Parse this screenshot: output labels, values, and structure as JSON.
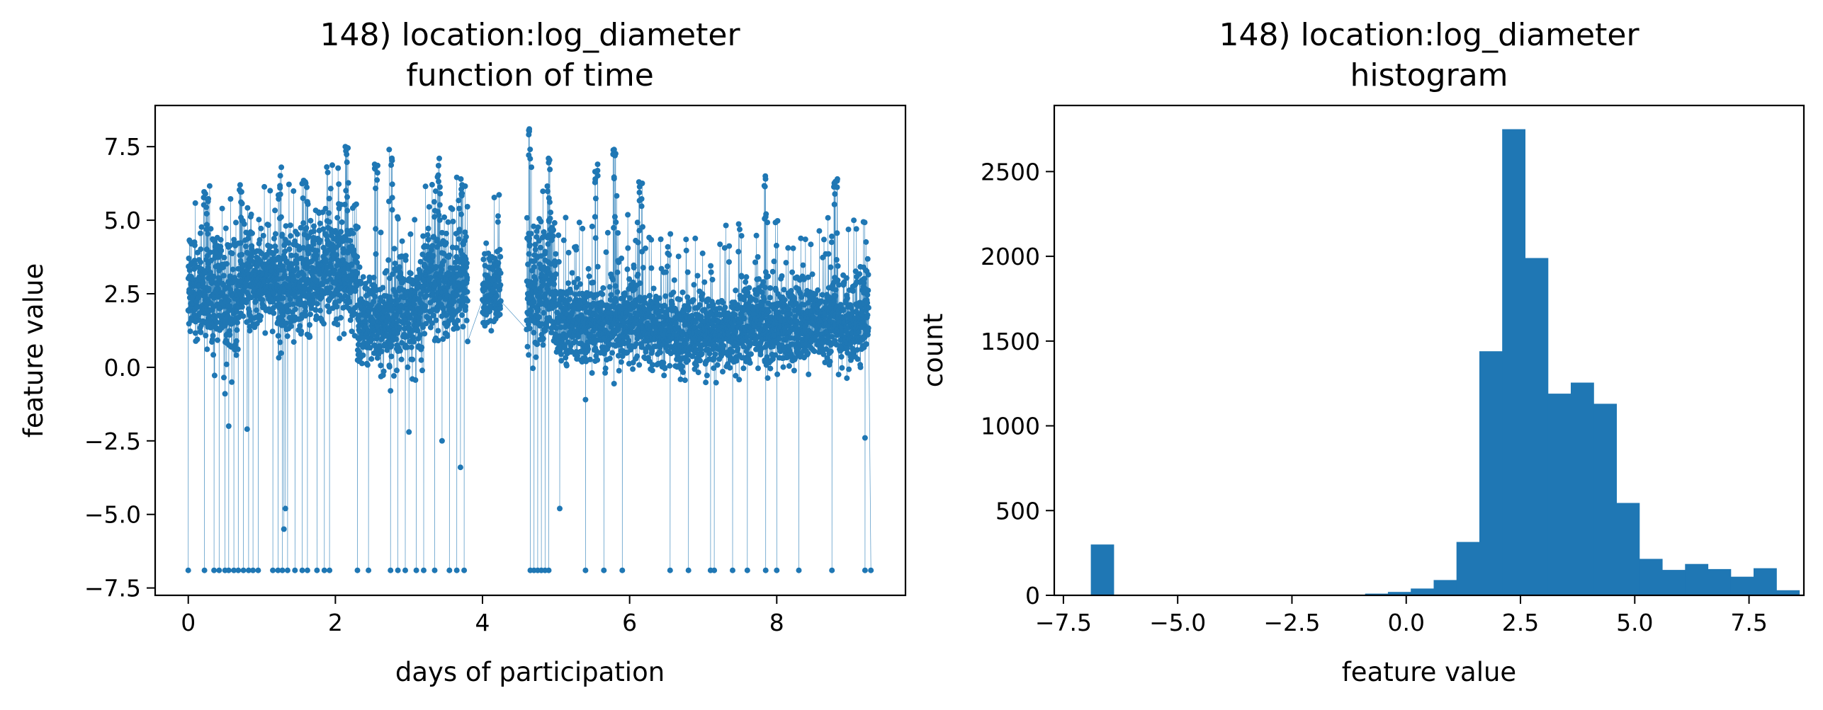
{
  "chart_data": [
    {
      "type": "line",
      "title_line1": "148) location:log_diameter",
      "title_line2": "function of time",
      "xlabel": "days of participation",
      "ylabel": "feature value",
      "xlim": [
        -0.45,
        9.75
      ],
      "ylim": [
        -7.75,
        8.9
      ],
      "x_ticks": [
        0,
        2,
        4,
        6,
        8
      ],
      "x_tick_labels": [
        "0",
        "2",
        "4",
        "6",
        "8"
      ],
      "y_ticks": [
        -7.5,
        -5.0,
        -2.5,
        0.0,
        2.5,
        5.0,
        7.5
      ],
      "y_tick_labels": [
        "−7.5",
        "−5.0",
        "−2.5",
        "0.0",
        "2.5",
        "5.0",
        "7.5"
      ],
      "series_color": "#1f77b4",
      "segments": [
        {
          "x0": 0.0,
          "x1": 0.1,
          "center": 2.6,
          "spread": 0.9
        },
        {
          "x0": 0.1,
          "x1": 0.3,
          "center": 2.5,
          "spread": 1.2
        },
        {
          "x0": 0.3,
          "x1": 0.7,
          "center": 2.3,
          "spread": 1.6
        },
        {
          "x0": 0.7,
          "x1": 1.2,
          "center": 2.9,
          "spread": 1.1
        },
        {
          "x0": 1.2,
          "x1": 1.7,
          "center": 2.8,
          "spread": 1.2
        },
        {
          "x0": 1.7,
          "x1": 2.3,
          "center": 3.3,
          "spread": 1.3
        },
        {
          "x0": 2.3,
          "x1": 2.8,
          "center": 1.6,
          "spread": 1.1
        },
        {
          "x0": 2.8,
          "x1": 3.2,
          "center": 2.0,
          "spread": 1.3
        },
        {
          "x0": 3.2,
          "x1": 3.8,
          "center": 2.8,
          "spread": 1.2
        },
        {
          "x0": 4.0,
          "x1": 4.25,
          "center": 2.5,
          "spread": 1.0
        },
        {
          "x0": 4.6,
          "x1": 5.0,
          "center": 2.5,
          "spread": 1.5
        },
        {
          "x0": 5.0,
          "x1": 6.3,
          "center": 1.5,
          "spread": 1.0
        },
        {
          "x0": 6.3,
          "x1": 7.5,
          "center": 1.2,
          "spread": 0.9
        },
        {
          "x0": 7.5,
          "x1": 9.25,
          "center": 1.4,
          "spread": 1.0
        }
      ],
      "spikes": [
        {
          "x": 0.25,
          "y": 5.9
        },
        {
          "x": 0.72,
          "y": 6.2
        },
        {
          "x": 1.25,
          "y": 6.8
        },
        {
          "x": 1.6,
          "y": 6.3
        },
        {
          "x": 2.15,
          "y": 7.5
        },
        {
          "x": 2.55,
          "y": 6.9
        },
        {
          "x": 2.75,
          "y": 7.4
        },
        {
          "x": 3.4,
          "y": 7.1
        },
        {
          "x": 3.7,
          "y": 6.4
        },
        {
          "x": 4.65,
          "y": 8.1
        },
        {
          "x": 4.9,
          "y": 7.1
        },
        {
          "x": 5.55,
          "y": 6.9
        },
        {
          "x": 5.8,
          "y": 7.4
        },
        {
          "x": 6.15,
          "y": 6.3
        },
        {
          "x": 7.85,
          "y": 6.5
        },
        {
          "x": 8.8,
          "y": 6.4
        },
        {
          "x": 9.2,
          "y": 3.4
        }
      ],
      "dropouts": [
        0.0,
        0.22,
        0.35,
        0.42,
        0.5,
        0.55,
        0.62,
        0.68,
        0.75,
        0.82,
        0.88,
        0.95,
        1.15,
        1.22,
        1.28,
        1.35,
        1.45,
        1.55,
        1.62,
        1.75,
        1.85,
        1.92,
        2.3,
        2.45,
        2.75,
        2.85,
        2.95,
        3.1,
        3.2,
        3.35,
        3.55,
        3.65,
        3.75,
        4.65,
        4.7,
        4.75,
        4.8,
        4.85,
        4.9,
        5.4,
        5.65,
        5.9,
        6.55,
        6.8,
        7.1,
        7.15,
        7.4,
        7.6,
        7.85,
        8.0,
        8.3,
        8.75,
        9.2,
        9.28
      ],
      "low_outliers": [
        {
          "x": 0.55,
          "y": -2.0
        },
        {
          "x": 0.8,
          "y": -2.1
        },
        {
          "x": 1.3,
          "y": -5.5
        },
        {
          "x": 1.32,
          "y": -4.8
        },
        {
          "x": 3.0,
          "y": -2.2
        },
        {
          "x": 3.45,
          "y": -2.5
        },
        {
          "x": 3.7,
          "y": -3.4
        },
        {
          "x": 5.05,
          "y": -4.8
        },
        {
          "x": 5.4,
          "y": -1.1
        },
        {
          "x": 9.2,
          "y": -2.4
        },
        {
          "x": 0.5,
          "y": -0.9
        },
        {
          "x": 2.75,
          "y": -0.8
        }
      ]
    },
    {
      "type": "bar",
      "title_line1": "148) location:log_diameter",
      "title_line2": "histogram",
      "xlabel": "feature value",
      "ylabel": "count",
      "xlim": [
        -7.7,
        8.7
      ],
      "ylim": [
        0,
        2890
      ],
      "x_ticks": [
        -7.5,
        -5.0,
        -2.5,
        0.0,
        2.5,
        5.0,
        7.5
      ],
      "x_tick_labels": [
        "−7.5",
        "−5.0",
        "−2.5",
        "0.0",
        "2.5",
        "5.0",
        "7.5"
      ],
      "y_ticks": [
        0,
        500,
        1000,
        1500,
        2000,
        2500
      ],
      "y_tick_labels": [
        "0",
        "500",
        "1000",
        "1500",
        "2000",
        "2500"
      ],
      "bin_start": -6.9,
      "bin_width": 0.5,
      "counts": [
        300,
        0,
        0,
        0,
        0,
        0,
        0,
        0,
        0,
        0,
        0,
        0,
        10,
        20,
        40,
        90,
        315,
        1440,
        2750,
        1990,
        1190,
        1255,
        1130,
        545,
        215,
        150,
        185,
        155,
        110,
        160,
        30
      ],
      "bar_color": "#1f77b4"
    }
  ]
}
